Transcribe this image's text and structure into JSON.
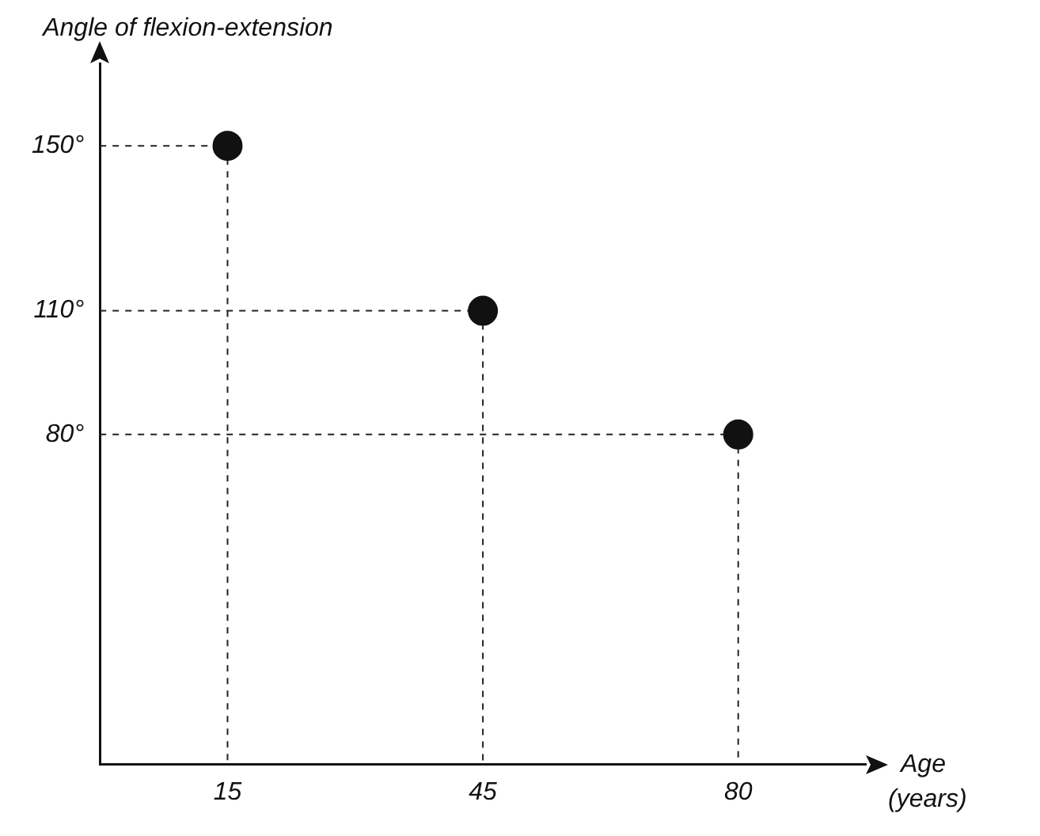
{
  "chart_data": {
    "type": "scatter",
    "ylabel": "Angle of flexion-extension",
    "xlabel": "Age\n(years)",
    "categories": [
      "15",
      "45",
      "80"
    ],
    "values": [
      150,
      110,
      80
    ],
    "color": "#111111",
    "marker": "circle",
    "ref_lines": [
      {
        "axis": "y",
        "value": 150,
        "line_style": "dashed"
      },
      {
        "axis": "y",
        "value": 110,
        "line_style": "dashed"
      },
      {
        "axis": "y",
        "value": 80,
        "line_style": "dashed"
      }
    ],
    "ylim": [
      0,
      170
    ],
    "yticks": [
      {
        "value": 80,
        "label": "80°"
      },
      {
        "value": 110,
        "label": "110°"
      },
      {
        "value": 150,
        "label": "150°"
      }
    ]
  }
}
